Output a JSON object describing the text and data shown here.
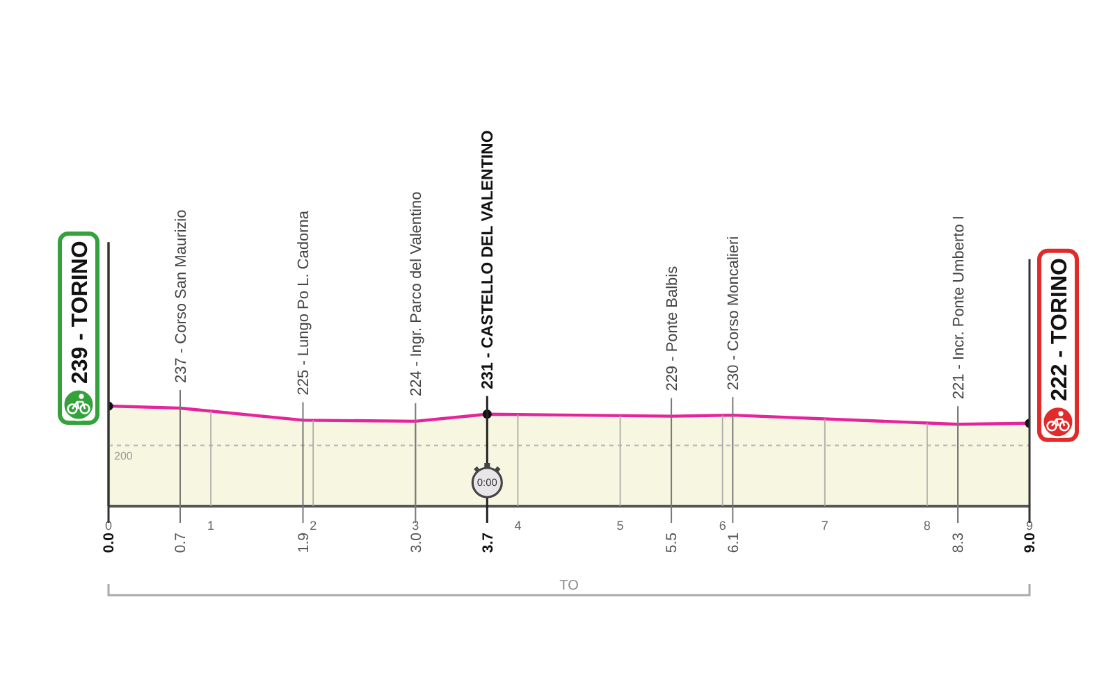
{
  "chart_data": {
    "type": "area",
    "x": [
      0,
      0.7,
      1.9,
      3.0,
      3.7,
      5.5,
      6.1,
      8.3,
      9.0
    ],
    "series": [
      {
        "color": "#e5249b",
        "values": [
          239,
          237,
          225,
          224,
          231,
          229,
          230,
          221,
          222
        ],
        "value_labels": [
          "239 - TORINO",
          "237 - Corso San Maurizio",
          "225 - Lungo Po L. Cadorna",
          "224 - Ingr. Parco del Valentino",
          "231 - CASTELLO DEL VALENTINO",
          "229 - Ponte Balbis",
          "230 - Corso Moncalieri",
          "221 - Incr. Ponte Umberto I",
          "222 - TORINO"
        ]
      }
    ],
    "xlim": [
      0,
      9
    ],
    "xticks": [
      0,
      1,
      2,
      3,
      4,
      5,
      6,
      7,
      8,
      9
    ],
    "x2lim": [
      0,
      9
    ],
    "x2ticks": [
      {
        "value": 0,
        "label": "0.0"
      },
      {
        "value": 0.7,
        "label": "0.7"
      },
      {
        "value": 1.9,
        "label": "1.9"
      },
      {
        "value": 3,
        "label": "3.0"
      },
      {
        "value": 3.7,
        "label": "3.7"
      },
      {
        "value": 5.5,
        "label": "5.5"
      },
      {
        "value": 6.1,
        "label": "6.1"
      },
      {
        "value": 8.3,
        "label": "8.3"
      },
      {
        "value": 9,
        "label": "9.0"
      }
    ],
    "ylim": [
      140,
      400
    ],
    "ref_lines": [
      {
        "axis": "y",
        "value": 200,
        "label": "200",
        "color": "#bbbbbb",
        "line_style": "dashed"
      }
    ],
    "grid": "x",
    "annotations": [
      {
        "text": "0:00",
        "x": 3.7
      },
      "TO"
    ]
  }
}
